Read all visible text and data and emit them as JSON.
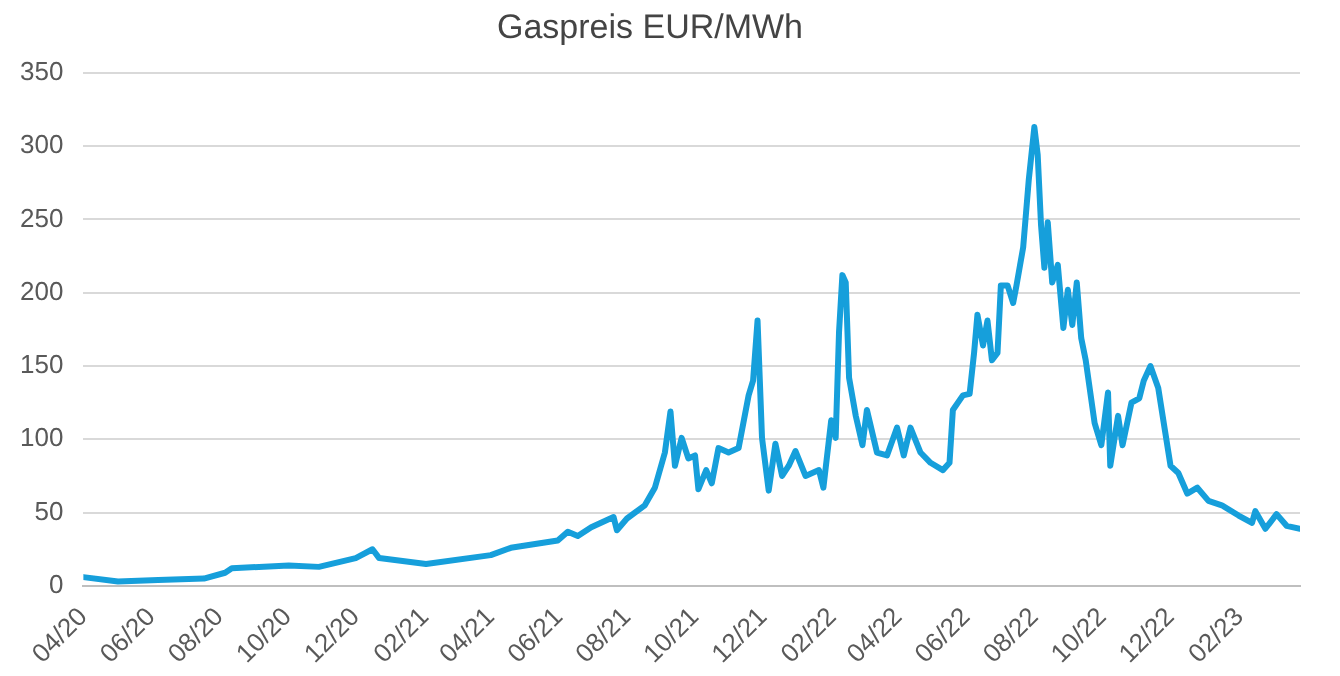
{
  "chart_data": {
    "type": "line",
    "title": "Gaspreis EUR/MWh",
    "x": [
      "2020-04-01",
      "2020-05-02",
      "2020-06-07",
      "2020-07-18",
      "2020-08-06",
      "2020-08-12",
      "2020-10-02",
      "2020-10-29",
      "2020-12-01",
      "2020-12-16",
      "2020-12-22",
      "2021-02-02",
      "2021-04-01",
      "2021-04-19",
      "2021-05-31",
      "2021-06-09",
      "2021-06-18",
      "2021-06-30",
      "2021-07-20",
      "2021-07-23",
      "2021-08-01",
      "2021-08-17",
      "2021-08-26",
      "2021-09-04",
      "2021-09-09",
      "2021-09-13",
      "2021-09-19",
      "2021-09-25",
      "2021-10-01",
      "2021-10-04",
      "2021-10-11",
      "2021-10-16",
      "2021-10-22",
      "2021-10-31",
      "2021-11-09",
      "2021-11-18",
      "2021-11-22",
      "2021-11-26",
      "2021-11-30",
      "2021-12-06",
      "2021-12-12",
      "2021-12-18",
      "2021-12-24",
      "2021-12-30",
      "2022-01-08",
      "2022-01-20",
      "2022-01-24",
      "2022-01-31",
      "2022-02-04",
      "2022-02-07",
      "2022-02-10",
      "2022-02-13",
      "2022-02-16",
      "2022-02-22",
      "2022-02-28",
      "2022-03-04",
      "2022-03-13",
      "2022-03-22",
      "2022-03-31",
      "2022-04-06",
      "2022-04-12",
      "2022-04-21",
      "2022-04-30",
      "2022-05-11",
      "2022-05-17",
      "2022-05-20",
      "2022-05-29",
      "2022-06-04",
      "2022-06-08",
      "2022-06-11",
      "2022-06-16",
      "2022-06-20",
      "2022-06-24",
      "2022-06-29",
      "2022-07-02",
      "2022-07-08",
      "2022-07-13",
      "2022-07-16",
      "2022-07-22",
      "2022-07-27",
      "2022-08-01",
      "2022-08-04",
      "2022-08-07",
      "2022-08-10",
      "2022-08-13",
      "2022-08-17",
      "2022-08-22",
      "2022-08-27",
      "2022-08-31",
      "2022-09-04",
      "2022-09-08",
      "2022-09-12",
      "2022-09-16",
      "2022-09-24",
      "2022-09-30",
      "2022-10-06",
      "2022-10-08",
      "2022-10-15",
      "2022-10-19",
      "2022-10-27",
      "2022-11-03",
      "2022-11-07",
      "2022-11-13",
      "2022-11-20",
      "2022-11-26",
      "2022-12-01",
      "2022-12-08",
      "2022-12-16",
      "2022-12-25",
      "2023-01-04",
      "2023-01-16",
      "2023-01-31",
      "2023-02-12",
      "2023-02-15",
      "2023-02-24",
      "2023-03-06",
      "2023-03-15",
      "2023-03-27"
    ],
    "series": [
      {
        "color": "#169fdb",
        "values": [
          6,
          3,
          4,
          5,
          9,
          12,
          14,
          13,
          19,
          25,
          19,
          15,
          21,
          26,
          31,
          37,
          34,
          40,
          47,
          38,
          46,
          55,
          67,
          91,
          119,
          82,
          101,
          87,
          89,
          66,
          79,
          70,
          94,
          91,
          94,
          130,
          140,
          181,
          101,
          65,
          97,
          75,
          82,
          92,
          75,
          79,
          67,
          113,
          101,
          173,
          212,
          207,
          142,
          116,
          96,
          120,
          91,
          89,
          108,
          89,
          108,
          91,
          84,
          79,
          84,
          120,
          130,
          131,
          159,
          185,
          164,
          181,
          154,
          159,
          205,
          205,
          193,
          205,
          231,
          277,
          313,
          294,
          246,
          217,
          248,
          207,
          219,
          176,
          202,
          178,
          207,
          169,
          154,
          111,
          96,
          132,
          82,
          116,
          96,
          125,
          128,
          140,
          150,
          135,
          106,
          82,
          77,
          63,
          67,
          58,
          55,
          48,
          43,
          51,
          39,
          49,
          41,
          39
        ]
      }
    ],
    "xlim": [
      "2020-04-01",
      "2023-03-27"
    ],
    "xticks": [
      {
        "value": "2020-04-01",
        "label": "04/20"
      },
      {
        "value": "2020-06-01",
        "label": "06/20"
      },
      {
        "value": "2020-08-01",
        "label": "08/20"
      },
      {
        "value": "2020-10-01",
        "label": "10/20"
      },
      {
        "value": "2020-12-01",
        "label": "12/20"
      },
      {
        "value": "2021-02-01",
        "label": "02/21"
      },
      {
        "value": "2021-04-01",
        "label": "04/21"
      },
      {
        "value": "2021-06-01",
        "label": "06/21"
      },
      {
        "value": "2021-08-01",
        "label": "08/21"
      },
      {
        "value": "2021-10-01",
        "label": "10/21"
      },
      {
        "value": "2021-12-01",
        "label": "12/21"
      },
      {
        "value": "2022-02-01",
        "label": "02/22"
      },
      {
        "value": "2022-04-01",
        "label": "04/22"
      },
      {
        "value": "2022-06-01",
        "label": "06/22"
      },
      {
        "value": "2022-08-01",
        "label": "08/22"
      },
      {
        "value": "2022-10-01",
        "label": "10/22"
      },
      {
        "value": "2022-12-01",
        "label": "12/22"
      },
      {
        "value": "2023-02-01",
        "label": "02/23"
      }
    ],
    "ylim": [
      0,
      350
    ],
    "yticks": [
      0,
      50,
      100,
      150,
      200,
      250,
      300,
      350
    ],
    "grid": "y",
    "legend": false,
    "marker": "none",
    "line_style": "solid"
  }
}
